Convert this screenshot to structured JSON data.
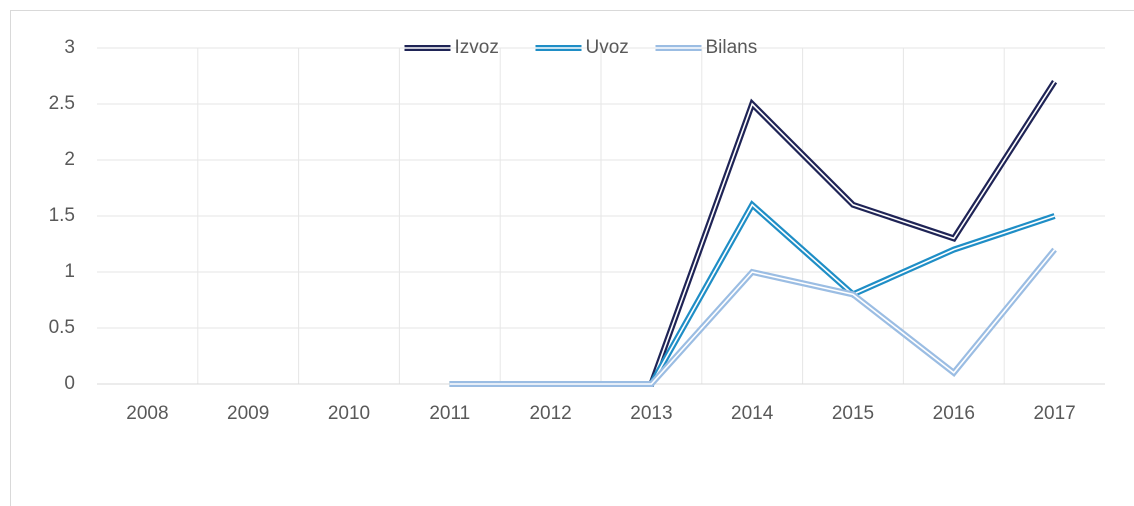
{
  "chart_data": {
    "type": "line",
    "categories": [
      "2008",
      "2009",
      "2010",
      "2011",
      "2012",
      "2013",
      "2014",
      "2015",
      "2016",
      "2017"
    ],
    "series": [
      {
        "name": "Izvoz",
        "color": "#1f2456",
        "values": [
          null,
          null,
          null,
          0,
          0,
          0,
          2.5,
          1.6,
          1.3,
          2.7
        ]
      },
      {
        "name": "Uvoz",
        "color": "#1f8ec6",
        "values": [
          null,
          null,
          null,
          0,
          0,
          0,
          1.6,
          0.8,
          1.2,
          1.5
        ]
      },
      {
        "name": "Bilans",
        "color": "#9bbde3",
        "values": [
          null,
          null,
          null,
          0,
          0,
          0,
          1.0,
          0.8,
          0.1,
          1.2
        ]
      }
    ],
    "ylim": [
      0,
      3
    ],
    "yticks": [
      0,
      0.5,
      1,
      1.5,
      2,
      2.5,
      3
    ],
    "grid": true,
    "legend": "top"
  }
}
